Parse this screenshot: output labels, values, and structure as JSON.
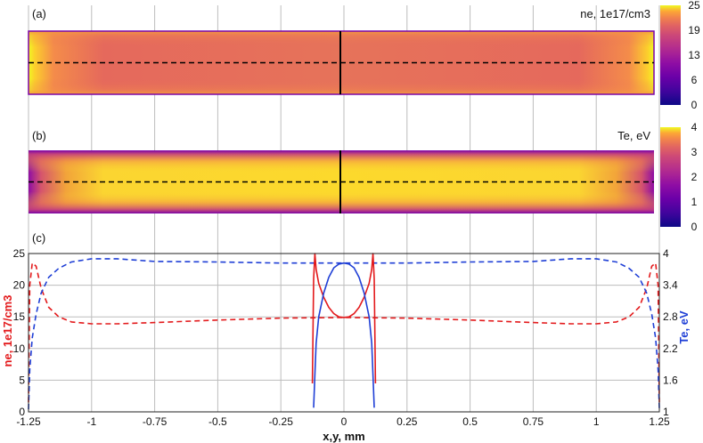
{
  "chart_data": [
    {
      "panel": "(a)",
      "type": "heatmap",
      "colorbar_title": "ne, 1e17/cm3",
      "colorbar_ticks": [
        "25",
        "19",
        "13",
        "6",
        "0"
      ],
      "colorbar_range": [
        0,
        25
      ],
      "colormap": "plasma"
    },
    {
      "panel": "(b)",
      "type": "heatmap",
      "colorbar_title": "Te, eV",
      "colorbar_ticks": [
        "4",
        "3",
        "2",
        "1",
        "0"
      ],
      "colorbar_range": [
        0,
        4
      ],
      "colormap": "plasma"
    },
    {
      "panel": "(c)",
      "type": "line",
      "xlabel": "x,y, mm",
      "ylabel_left": "ne, 1e17/cm3",
      "ylabel_right": "Te, eV",
      "xlim": [
        -1.25,
        1.25
      ],
      "ylim_left": [
        0,
        25
      ],
      "ylim_right": [
        1,
        4
      ],
      "x_ticks": [
        "-1.25",
        "-1",
        "-0.75",
        "-0.5",
        "-0.25",
        "0",
        "0.25",
        "0.5",
        "0.75",
        "1",
        "1.25"
      ],
      "x_tick_values": [
        -1.25,
        -1,
        -0.75,
        -0.5,
        -0.25,
        0,
        0.25,
        0.5,
        0.75,
        1,
        1.25
      ],
      "y_left_ticks": [
        "0",
        "5",
        "10",
        "15",
        "20",
        "25"
      ],
      "y_left_values": [
        0,
        5,
        10,
        15,
        20,
        25
      ],
      "y_right_ticks": [
        "1",
        "1.6",
        "2.2",
        "2.8",
        "3.4",
        "4"
      ],
      "y_right_values": [
        1,
        1.6,
        2.2,
        2.8,
        3.4,
        4
      ],
      "grid": true,
      "series": [
        {
          "axis": "left",
          "color": "#e31a1c",
          "style": "dashed",
          "x": [
            -1.25,
            -1.245,
            -1.235,
            -1.22,
            -1.2,
            -1.17,
            -1.13,
            -1.08,
            -1.0,
            -0.9,
            -0.75,
            -0.5,
            -0.25,
            0,
            0.25,
            0.5,
            0.75,
            0.9,
            1.0,
            1.08,
            1.13,
            1.17,
            1.2,
            1.22,
            1.235,
            1.245,
            1.25
          ],
          "y": [
            1.5,
            20.0,
            23.5,
            23.0,
            19.5,
            16.5,
            15.0,
            14.2,
            13.9,
            13.9,
            14.1,
            14.5,
            14.8,
            14.9,
            14.8,
            14.5,
            14.1,
            13.9,
            13.9,
            14.2,
            15.0,
            16.5,
            19.5,
            23.0,
            23.5,
            20.0,
            1.5
          ]
        },
        {
          "axis": "right",
          "color": "#1f3fd6",
          "style": "dashed",
          "x": [
            -1.25,
            -1.245,
            -1.235,
            -1.22,
            -1.2,
            -1.17,
            -1.13,
            -1.08,
            -1.0,
            -0.9,
            -0.75,
            -0.5,
            -0.25,
            0,
            0.25,
            0.5,
            0.75,
            0.9,
            1.0,
            1.08,
            1.13,
            1.17,
            1.2,
            1.22,
            1.235,
            1.245,
            1.25
          ],
          "y": [
            1.05,
            1.8,
            2.4,
            2.85,
            3.25,
            3.55,
            3.72,
            3.84,
            3.9,
            3.9,
            3.85,
            3.84,
            3.82,
            3.82,
            3.82,
            3.84,
            3.85,
            3.9,
            3.9,
            3.84,
            3.72,
            3.55,
            3.25,
            2.85,
            2.4,
            1.8,
            1.05
          ]
        },
        {
          "axis": "left",
          "color": "#e31a1c",
          "style": "solid",
          "x": [
            -0.125,
            -0.12,
            -0.115,
            -0.11,
            -0.1,
            -0.08,
            -0.06,
            -0.04,
            -0.02,
            0,
            0.02,
            0.04,
            0.06,
            0.08,
            0.1,
            0.11,
            0.115,
            0.12,
            0.125
          ],
          "y": [
            4.5,
            21.0,
            25.0,
            22.5,
            20.3,
            18.1,
            16.5,
            15.5,
            15.0,
            14.9,
            15.0,
            15.5,
            16.5,
            18.1,
            20.3,
            22.5,
            25.0,
            21.0,
            4.5
          ]
        },
        {
          "axis": "right",
          "color": "#1f3fd6",
          "style": "solid",
          "x": [
            -0.12,
            -0.115,
            -0.11,
            -0.1,
            -0.08,
            -0.06,
            -0.04,
            -0.02,
            0,
            0.02,
            0.04,
            0.06,
            0.08,
            0.1,
            0.11,
            0.115,
            0.12
          ],
          "y": [
            1.08,
            1.7,
            2.3,
            2.8,
            3.25,
            3.55,
            3.73,
            3.8,
            3.82,
            3.8,
            3.73,
            3.55,
            3.25,
            2.8,
            2.3,
            1.7,
            1.08
          ]
        }
      ]
    }
  ]
}
